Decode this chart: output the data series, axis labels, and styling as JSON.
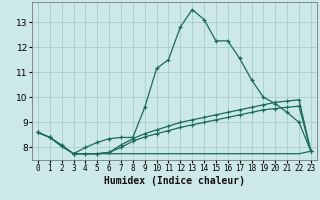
{
  "title": "",
  "xlabel": "Humidex (Indice chaleur)",
  "bg_color": "#cce8e8",
  "grid_color": "#aacccc",
  "line_color": "#1a6b5a",
  "xlim": [
    -0.5,
    23.5
  ],
  "ylim": [
    7.5,
    13.8
  ],
  "xticks": [
    0,
    1,
    2,
    3,
    4,
    5,
    6,
    7,
    8,
    9,
    10,
    11,
    12,
    13,
    14,
    15,
    16,
    17,
    18,
    19,
    20,
    21,
    22,
    23
  ],
  "yticks": [
    8,
    9,
    10,
    11,
    12,
    13
  ],
  "line1_x": [
    0,
    1,
    2,
    3,
    4,
    5,
    6,
    7,
    8,
    9,
    10,
    11,
    12,
    13,
    14,
    15,
    16,
    17,
    18,
    19,
    20,
    21,
    22,
    23
  ],
  "line1_y": [
    8.6,
    8.4,
    8.1,
    7.75,
    8.0,
    8.2,
    8.35,
    8.4,
    8.4,
    9.6,
    11.15,
    11.5,
    12.8,
    13.5,
    13.1,
    12.25,
    12.25,
    11.55,
    10.7,
    10.0,
    9.75,
    9.4,
    9.0,
    7.85
  ],
  "line2_x": [
    0,
    1,
    2,
    3,
    4,
    5,
    6,
    7,
    8,
    9,
    10,
    11,
    12,
    13,
    14,
    15,
    16,
    17,
    18,
    19,
    20,
    21,
    22,
    23
  ],
  "line2_y": [
    8.6,
    8.4,
    8.05,
    7.75,
    7.75,
    7.75,
    7.8,
    8.1,
    8.35,
    8.55,
    8.7,
    8.85,
    9.0,
    9.1,
    9.2,
    9.3,
    9.4,
    9.5,
    9.6,
    9.7,
    9.8,
    9.85,
    9.9,
    7.85
  ],
  "line3_x": [
    0,
    1,
    2,
    3,
    4,
    5,
    6,
    7,
    8,
    9,
    10,
    11,
    12,
    13,
    14,
    15,
    16,
    17,
    18,
    19,
    20,
    21,
    22,
    23
  ],
  "line3_y": [
    8.6,
    8.4,
    8.05,
    7.75,
    7.75,
    7.75,
    7.8,
    8.0,
    8.25,
    8.42,
    8.55,
    8.67,
    8.8,
    8.9,
    9.0,
    9.1,
    9.2,
    9.3,
    9.4,
    9.5,
    9.55,
    9.6,
    9.65,
    7.85
  ],
  "line4_x": [
    3,
    4,
    5,
    6,
    7,
    8,
    9,
    10,
    11,
    12,
    13,
    14,
    15,
    16,
    17,
    18,
    19,
    20,
    21,
    22,
    23
  ],
  "line4_y": [
    7.75,
    7.75,
    7.75,
    7.75,
    7.75,
    7.75,
    7.75,
    7.75,
    7.75,
    7.75,
    7.75,
    7.75,
    7.75,
    7.75,
    7.75,
    7.75,
    7.75,
    7.75,
    7.75,
    7.75,
    7.85
  ]
}
